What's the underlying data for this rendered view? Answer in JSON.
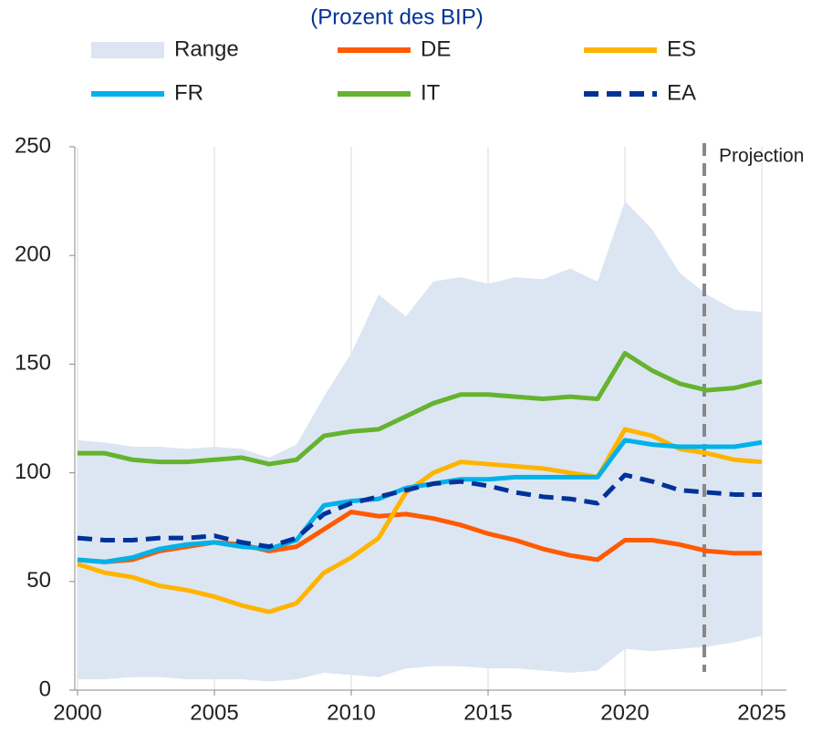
{
  "chart_data": {
    "type": "line",
    "title": "(Prozent des BIP)",
    "x": [
      2000,
      2001,
      2002,
      2003,
      2004,
      2005,
      2006,
      2007,
      2008,
      2009,
      2010,
      2011,
      2012,
      2013,
      2014,
      2015,
      2016,
      2017,
      2018,
      2019,
      2020,
      2021,
      2022,
      2023,
      2024,
      2025
    ],
    "series": [
      {
        "name": "Range",
        "color": "#dce6f2",
        "upper": [
          115,
          114,
          112,
          112,
          111,
          112,
          111,
          107,
          113,
          135,
          155,
          182,
          172,
          188,
          190,
          187,
          190,
          189,
          194,
          188,
          225,
          212,
          192,
          182,
          175,
          174
        ],
        "lower": [
          5,
          5,
          6,
          6,
          5,
          5,
          5,
          4,
          5,
          8,
          7,
          6,
          10,
          11,
          11,
          10,
          10,
          9,
          8,
          9,
          19,
          18,
          19,
          20,
          22,
          25
        ]
      },
      {
        "name": "DE",
        "color": "#ff5a00",
        "values": [
          60,
          59,
          60,
          64,
          66,
          68,
          67,
          64,
          66,
          74,
          82,
          80,
          81,
          79,
          76,
          72,
          69,
          65,
          62,
          60,
          69,
          69,
          67,
          64,
          63,
          63
        ]
      },
      {
        "name": "ES",
        "color": "#ffb400",
        "values": [
          58,
          54,
          52,
          48,
          46,
          43,
          39,
          36,
          40,
          54,
          61,
          70,
          91,
          100,
          105,
          104,
          103,
          102,
          100,
          98,
          120,
          117,
          111,
          109,
          106,
          105
        ]
      },
      {
        "name": "FR",
        "color": "#00b1ea",
        "values": [
          60,
          59,
          61,
          65,
          67,
          68,
          66,
          65,
          69,
          85,
          87,
          88,
          93,
          95,
          97,
          97,
          98,
          98,
          98,
          98,
          115,
          113,
          112,
          112,
          112,
          114
        ]
      },
      {
        "name": "IT",
        "color": "#65b32e",
        "values": [
          109,
          109,
          106,
          105,
          105,
          106,
          107,
          104,
          106,
          117,
          119,
          120,
          126,
          132,
          136,
          136,
          135,
          134,
          135,
          134,
          155,
          147,
          141,
          138,
          139,
          142
        ]
      },
      {
        "name": "EA",
        "color": "#003299",
        "dashed": true,
        "values": [
          70,
          69,
          69,
          70,
          70,
          71,
          68,
          66,
          70,
          81,
          86,
          89,
          92,
          95,
          96,
          94,
          91,
          89,
          88,
          86,
          99,
          96,
          92,
          91,
          90,
          90
        ]
      }
    ],
    "projection": {
      "x": 2022.9,
      "label": "Projection"
    },
    "xlim": [
      1999.9,
      2025.9
    ],
    "xticks": [
      2000,
      2005,
      2010,
      2015,
      2020,
      2025
    ],
    "ylim": [
      0,
      250
    ],
    "yticks": [
      0,
      50,
      100,
      150,
      200,
      250
    ],
    "grid": "x"
  }
}
